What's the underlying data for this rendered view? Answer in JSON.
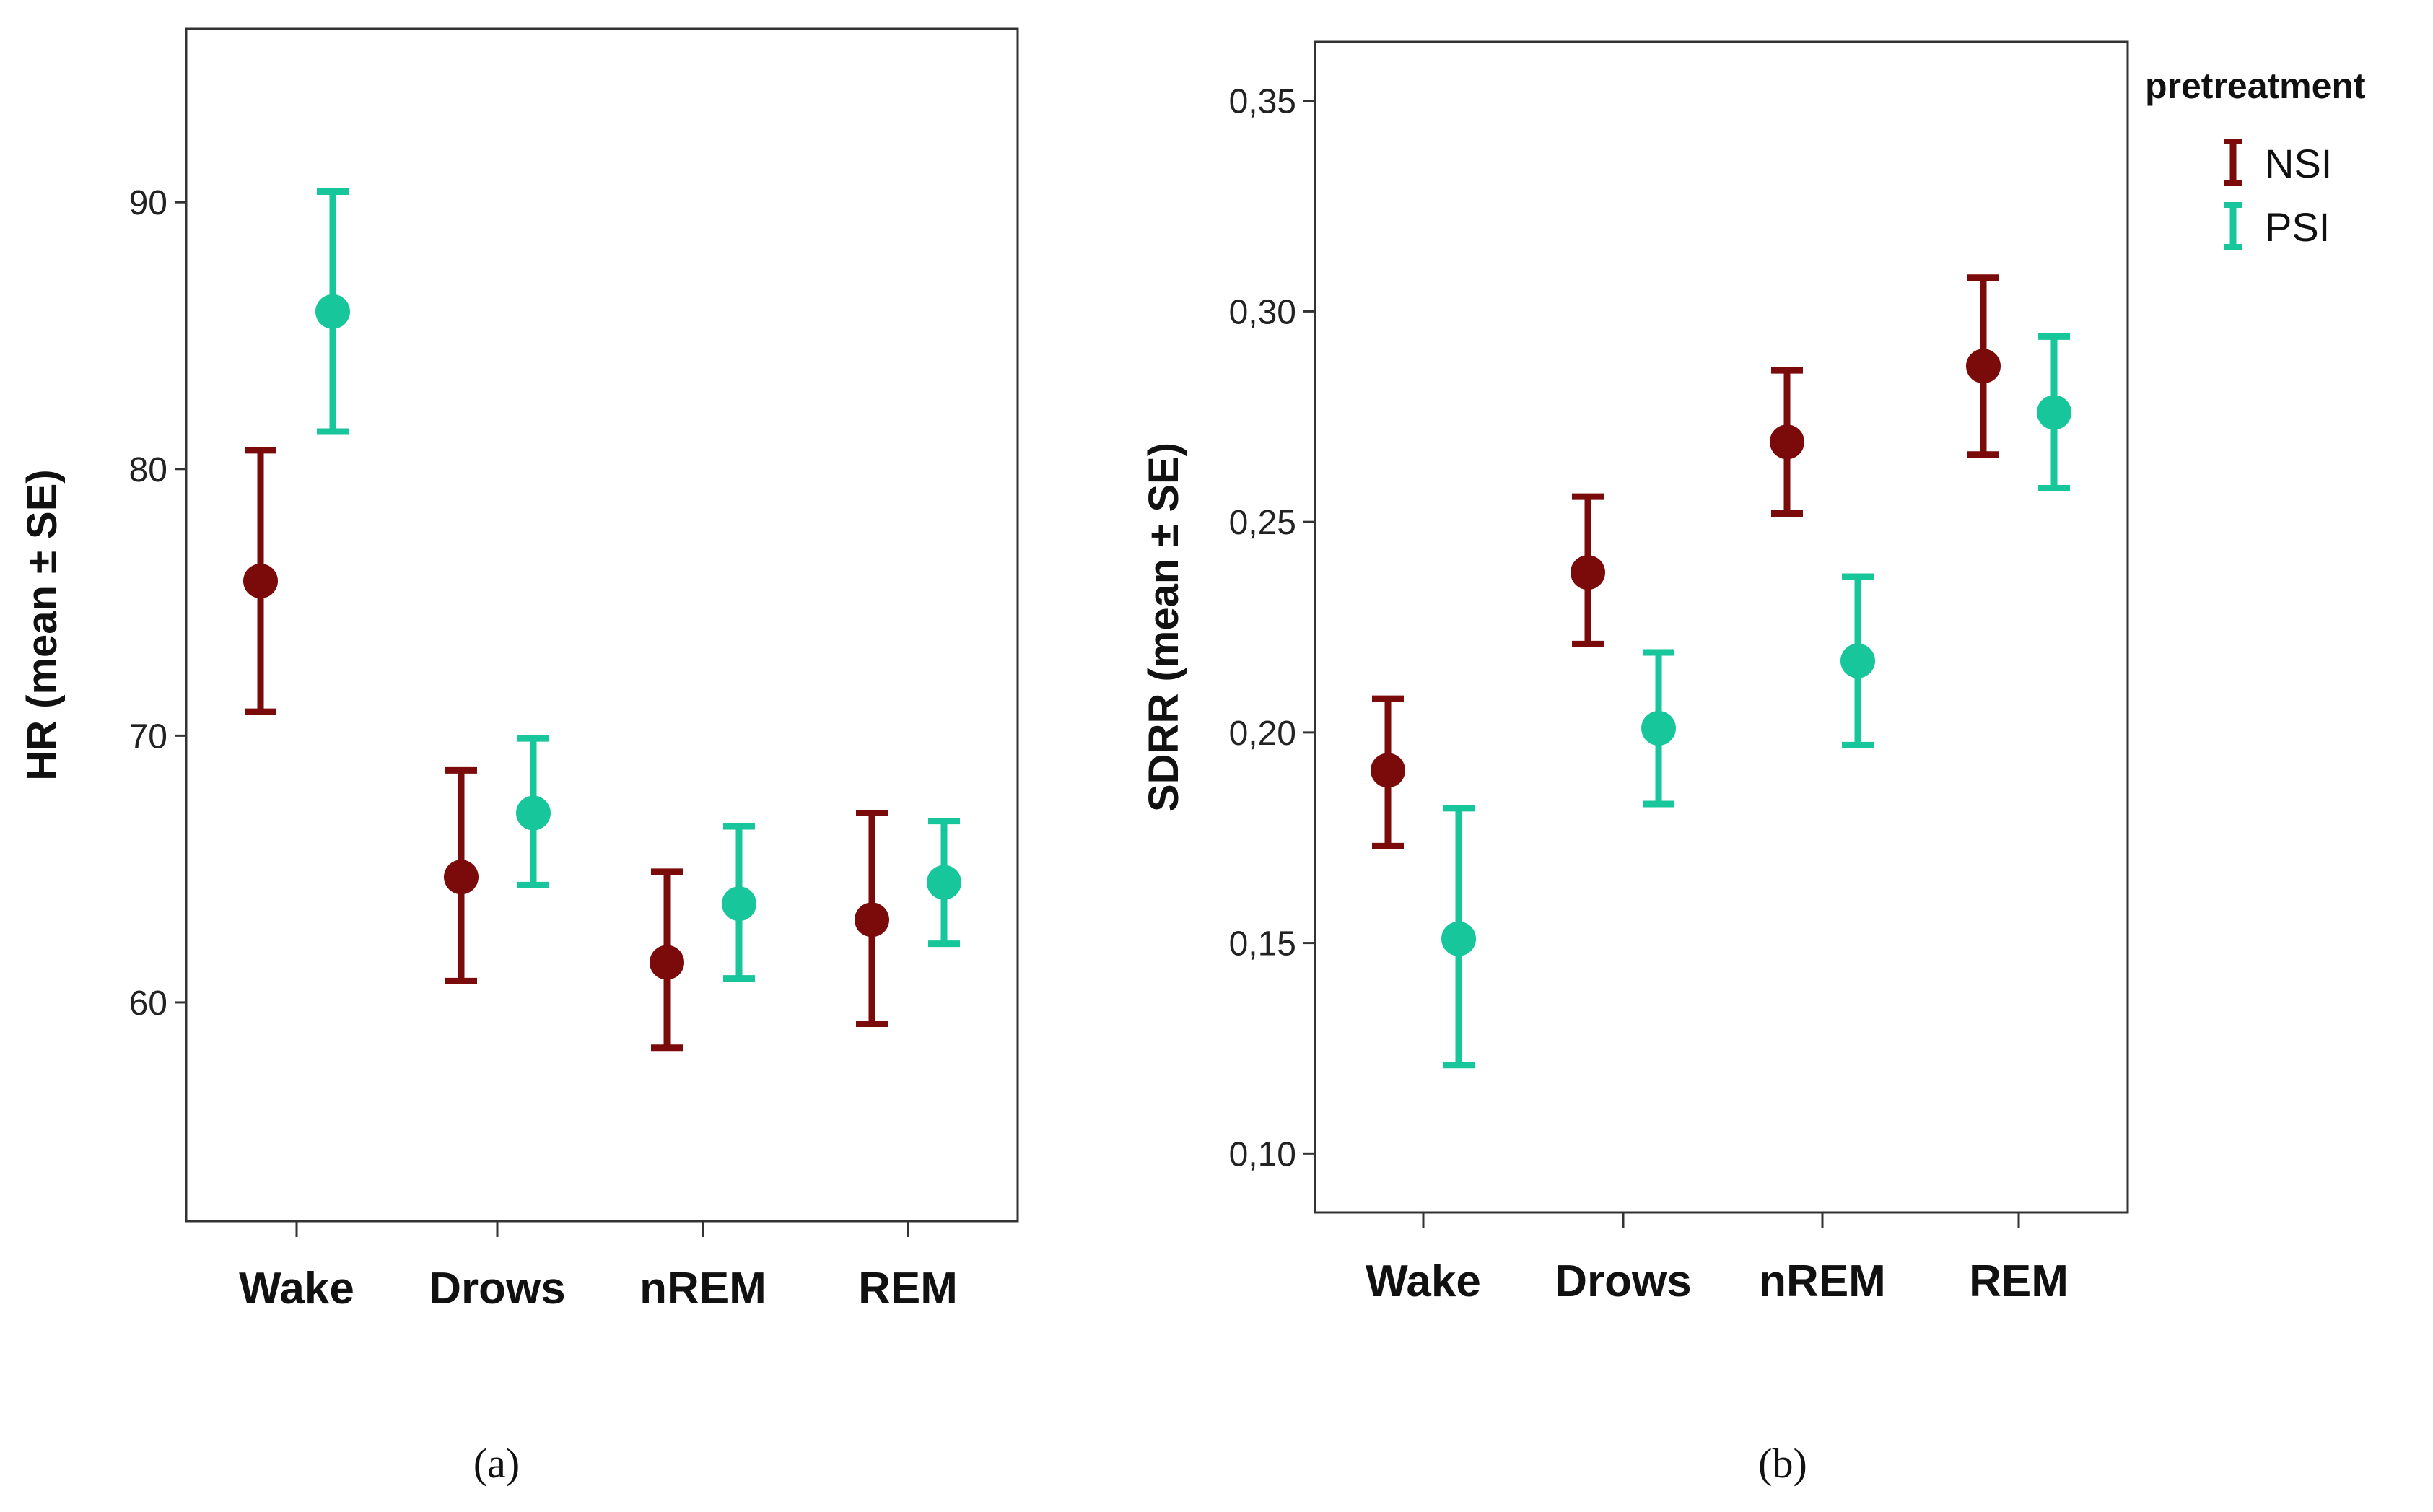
{
  "colors": {
    "NSI": "#7b0a0a",
    "PSI": "#17c69a"
  },
  "legend": {
    "title": "pretreatment",
    "items": [
      {
        "label": "NSI",
        "color_key": "NSI"
      },
      {
        "label": "PSI",
        "color_key": "PSI"
      }
    ]
  },
  "chart_data": [
    {
      "type": "errorbar",
      "caption": "(a)",
      "ylabel": "HR (mean ± SE)",
      "categories": [
        "Wake",
        "Drows",
        "nREM",
        "REM"
      ],
      "ylim": [
        51.8,
        96.5
      ],
      "yticks": [
        60,
        70,
        80,
        90
      ],
      "ytick_labels": [
        "60",
        "70",
        "80",
        "90"
      ],
      "series": [
        {
          "name": "NSI",
          "means": [
            75.8,
            64.7,
            61.5,
            63.1
          ],
          "lower": [
            70.9,
            60.8,
            58.3,
            59.2
          ],
          "upper": [
            80.7,
            68.7,
            64.9,
            67.1
          ]
        },
        {
          "name": "PSI",
          "means": [
            85.9,
            67.1,
            63.7,
            64.5
          ],
          "lower": [
            81.4,
            64.4,
            60.9,
            62.2
          ],
          "upper": [
            90.4,
            69.9,
            66.6,
            66.8
          ]
        }
      ]
    },
    {
      "type": "errorbar",
      "caption": "(b)",
      "ylabel": "SDRR (mean ± SE)",
      "categories": [
        "Wake",
        "Drows",
        "nREM",
        "REM"
      ],
      "ylim": [
        0.086,
        0.364
      ],
      "yticks": [
        0.1,
        0.15,
        0.2,
        0.25,
        0.3,
        0.35
      ],
      "ytick_labels": [
        "0,10",
        "0,15",
        "0,20",
        "0,25",
        "0,30",
        "0,35"
      ],
      "series": [
        {
          "name": "NSI",
          "means": [
            0.191,
            0.238,
            0.269,
            0.287
          ],
          "lower": [
            0.173,
            0.221,
            0.252,
            0.266
          ],
          "upper": [
            0.208,
            0.256,
            0.286,
            0.308
          ]
        },
        {
          "name": "PSI",
          "means": [
            0.151,
            0.201,
            0.217,
            0.276
          ],
          "lower": [
            0.121,
            0.183,
            0.197,
            0.258
          ],
          "upper": [
            0.182,
            0.219,
            0.237,
            0.294
          ]
        }
      ]
    }
  ]
}
